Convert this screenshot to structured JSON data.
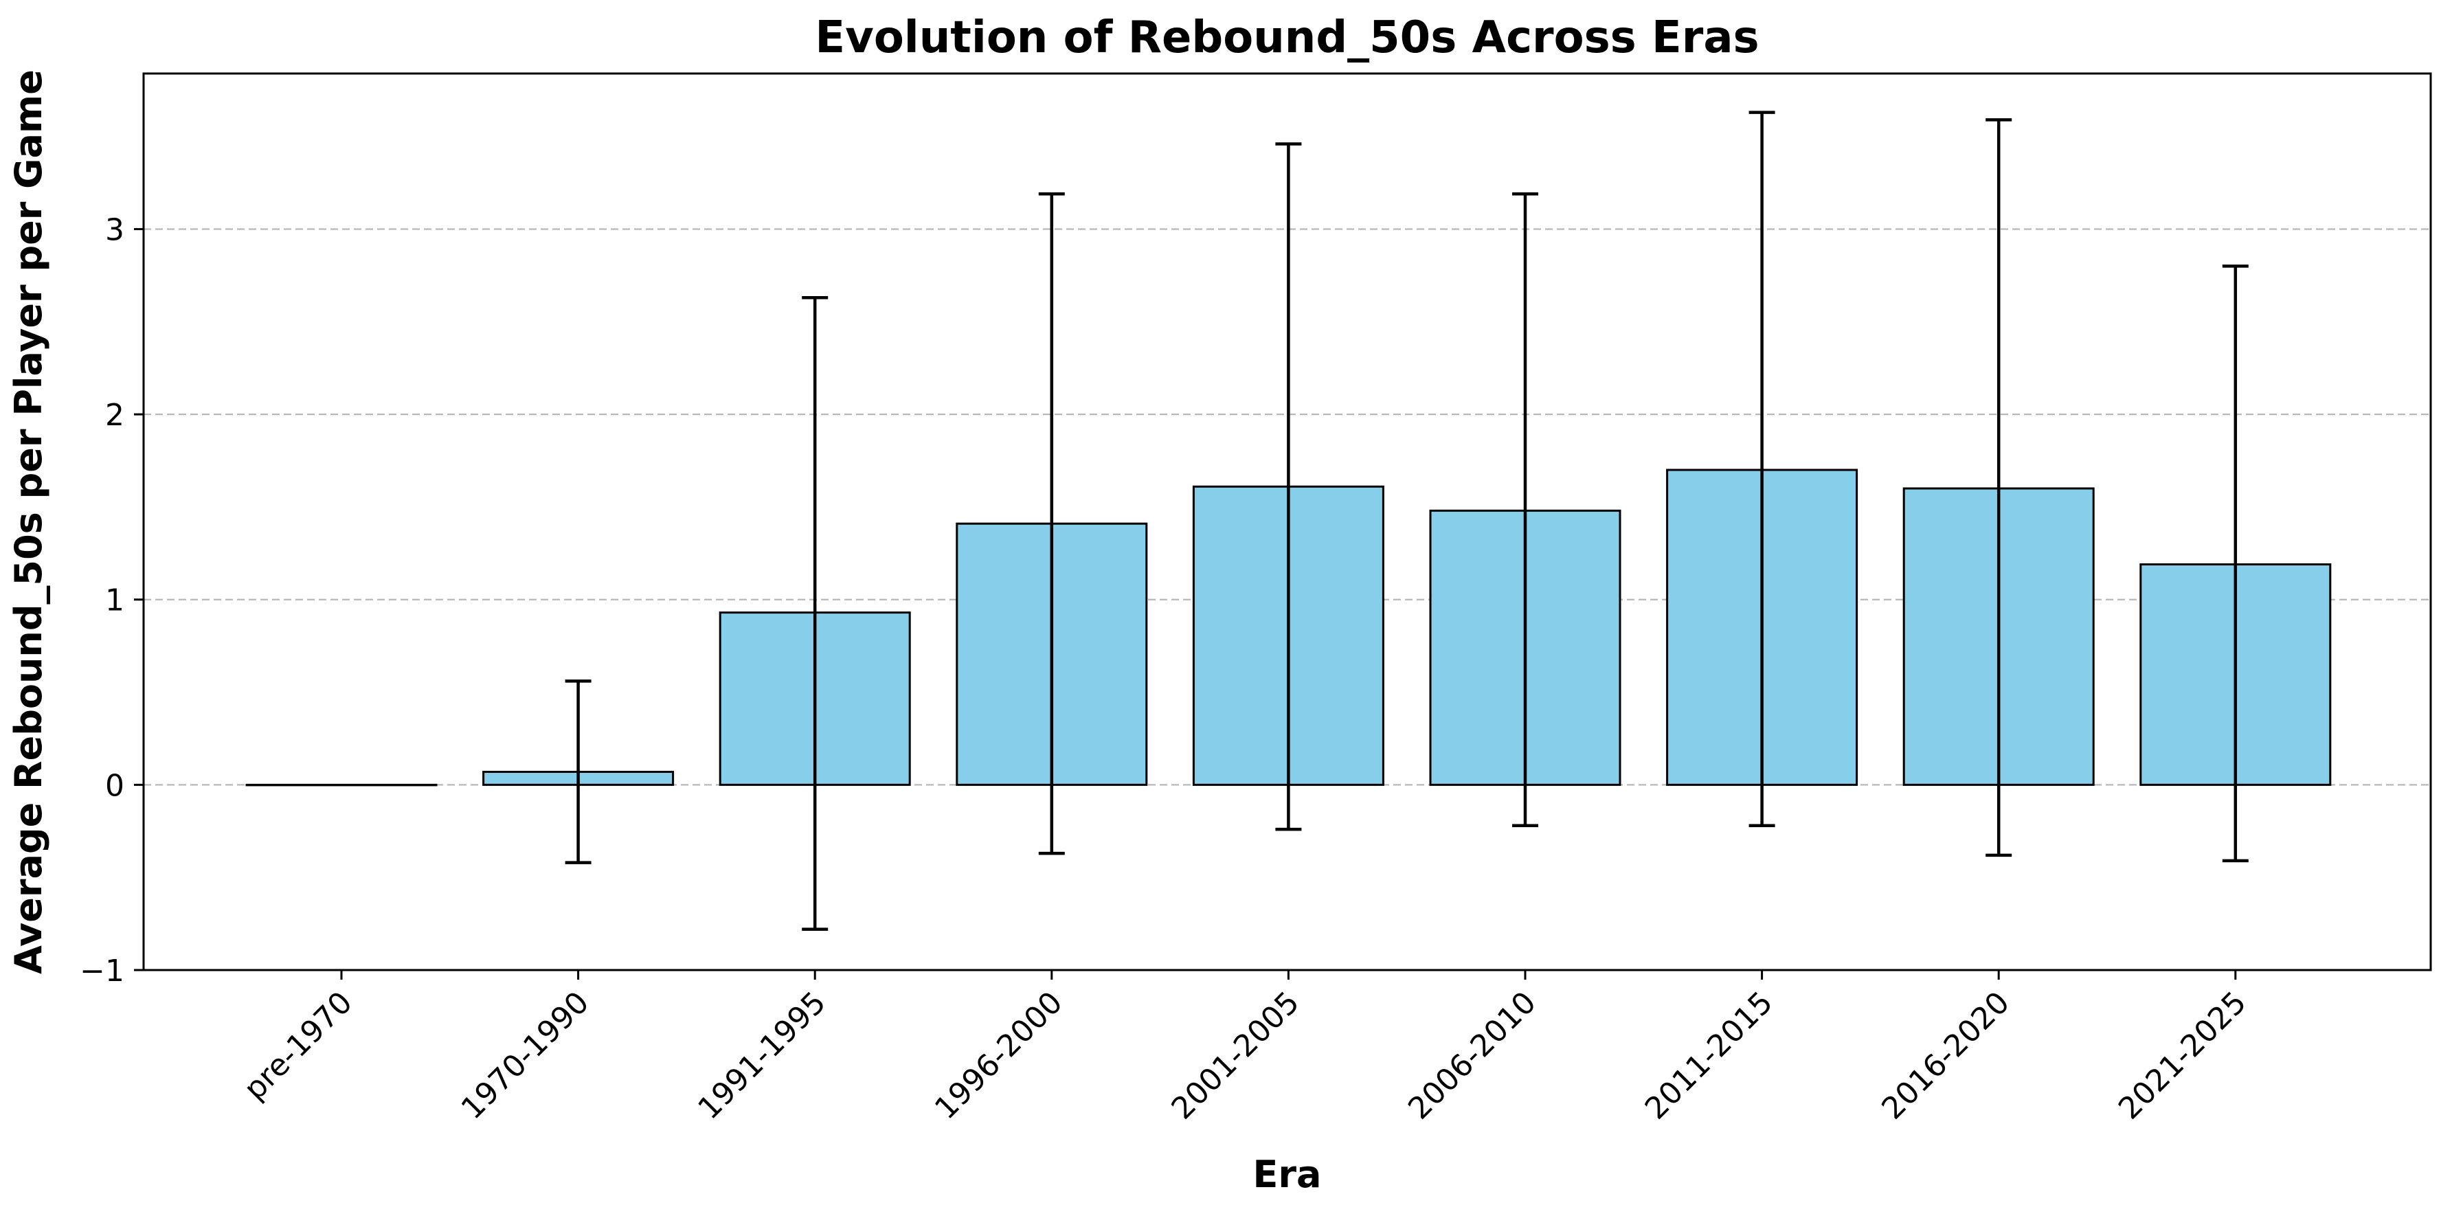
{
  "chart_data": {
    "type": "bar",
    "title": "Evolution of Rebound_50s Across Eras",
    "xlabel": "Era",
    "ylabel": "Average Rebound_50s per Player per Game",
    "categories": [
      "pre-1970",
      "1970-1990",
      "1991-1995",
      "1996-2000",
      "2001-2005",
      "2006-2010",
      "2011-2015",
      "2016-2020",
      "2021-2025"
    ],
    "values": [
      0.0,
      0.07,
      0.93,
      1.41,
      1.61,
      1.48,
      1.7,
      1.6,
      1.19
    ],
    "error_low": [
      0.0,
      -0.42,
      -0.78,
      -0.37,
      -0.24,
      -0.22,
      -0.22,
      -0.38,
      -0.41
    ],
    "error_high": [
      0.0,
      0.56,
      2.63,
      3.19,
      3.46,
      3.19,
      3.63,
      3.59,
      2.8
    ],
    "yticks": [
      -1,
      0,
      1,
      2,
      3
    ],
    "ylim": [
      -1,
      3.84
    ],
    "grid": "y-dashed",
    "bar_color": "#87CEEB",
    "edge_color": "#000000"
  }
}
